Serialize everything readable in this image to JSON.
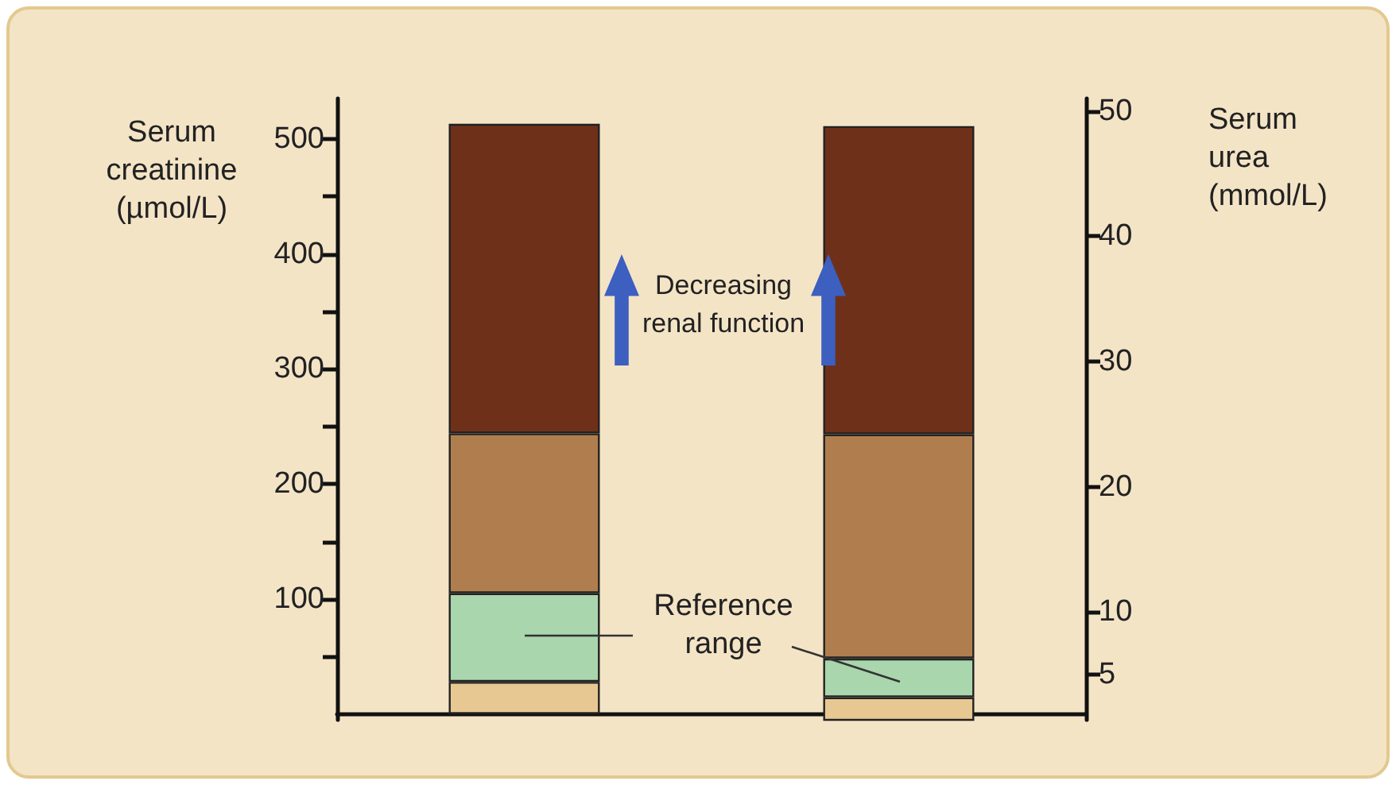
{
  "chart_data": {
    "type": "bar",
    "stacked": true,
    "ylabel": "Serum\ncreatinine\n(µmol/L)",
    "y2label": "Serum\nurea\n(mmol/L)",
    "annotations": [
      "Decreasing renal function",
      "Reference range"
    ],
    "categories": [
      null,
      null
    ],
    "ylim": [
      -5,
      535
    ],
    "yticks": [
      {
        "value": 50,
        "label": null
      },
      100,
      {
        "value": 150,
        "label": null
      },
      200,
      {
        "value": 250,
        "label": null
      },
      300,
      {
        "value": 350,
        "label": null
      },
      400,
      {
        "value": 450,
        "label": null
      },
      500
    ],
    "y2lim": [
      1.4,
      51
    ],
    "y2ticks": [
      5,
      10,
      20,
      30,
      40,
      50
    ],
    "series": [
      {
        "color": "#e8c892",
        "values": [
          28,
          null
        ]
      },
      {
        "color": "#a9d6ac",
        "values": [
          77,
          null
        ]
      },
      {
        "color": "#b07e4e",
        "values": [
          139,
          null
        ]
      },
      {
        "color": "#6f301a",
        "values": [
          269,
          null
        ]
      },
      {
        "color": "#e8c892",
        "values": [
          null,
          3.2
        ],
        "axis": "y2"
      },
      {
        "color": "#a9d6ac",
        "values": [
          null,
          3.1
        ],
        "axis": "y2"
      },
      {
        "color": "#b07e4e",
        "values": [
          null,
          17.9
        ],
        "axis": "y2"
      },
      {
        "color": "#6f301a",
        "values": [
          null,
          24.6
        ],
        "axis": "y2"
      }
    ]
  }
}
